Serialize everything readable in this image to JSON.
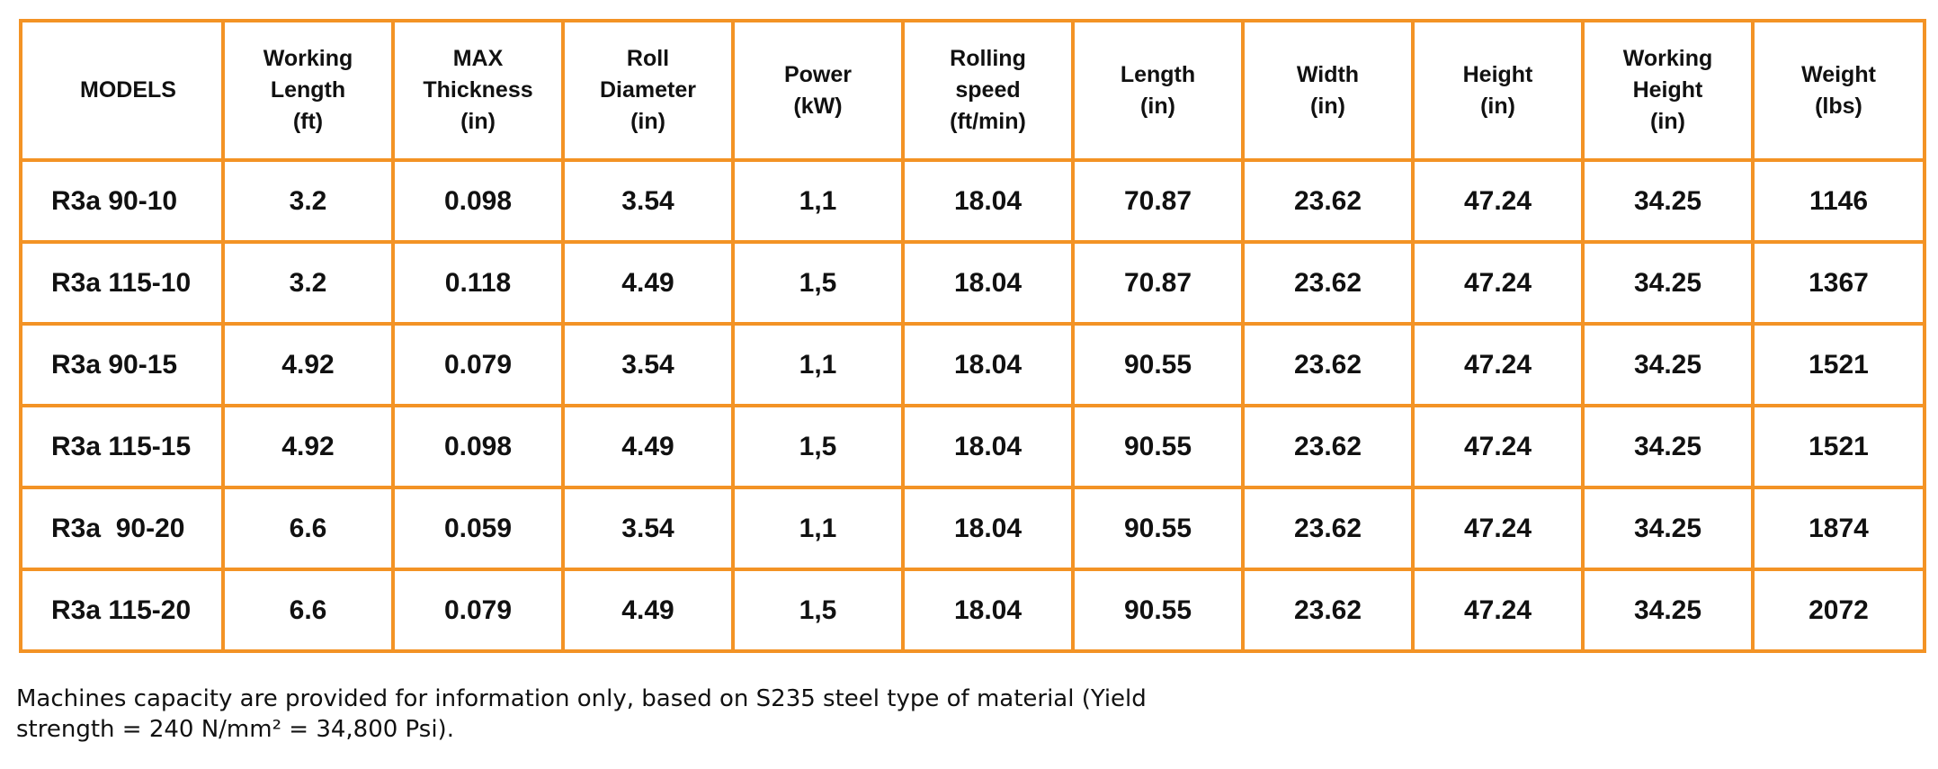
{
  "table": {
    "headers": [
      "MODELS",
      "Working\nLength\n(ft)",
      "MAX\nThickness\n(in)",
      "Roll\nDiameter\n(in)",
      "Power\n(kW)",
      "Rolling\nspeed\n(ft/min)",
      "Length\n(in)",
      "Width\n(in)",
      "Height\n(in)",
      "Working\nHeight\n(in)",
      "Weight\n(lbs)"
    ],
    "rows": [
      [
        "R3a 90-10",
        "3.2",
        "0.098",
        "3.54",
        "1,1",
        "18.04",
        "70.87",
        "23.62",
        "47.24",
        "34.25",
        "1146"
      ],
      [
        "R3a 115-10",
        "3.2",
        "0.118",
        "4.49",
        "1,5",
        "18.04",
        "70.87",
        "23.62",
        "47.24",
        "34.25",
        "1367"
      ],
      [
        "R3a 90-15",
        "4.92",
        "0.079",
        "3.54",
        "1,1",
        "18.04",
        "90.55",
        "23.62",
        "47.24",
        "34.25",
        "1521"
      ],
      [
        "R3a 115-15",
        "4.92",
        "0.098",
        "4.49",
        "1,5",
        "18.04",
        "90.55",
        "23.62",
        "47.24",
        "34.25",
        "1521"
      ],
      [
        "R3a  90-20",
        "6.6",
        "0.059",
        "3.54",
        "1,1",
        "18.04",
        "90.55",
        "23.62",
        "47.24",
        "34.25",
        "1874"
      ],
      [
        "R3a 115-20",
        "6.6",
        "0.079",
        "4.49",
        "1,5",
        "18.04",
        "90.55",
        "23.62",
        "47.24",
        "34.25",
        "2072"
      ]
    ],
    "border_color": "#f39325"
  },
  "footnote": "Machines capacity are provided for information only, based on S235 steel type of material (Yield\nstrength = 240 N/mm² = 34,800 Psi)."
}
